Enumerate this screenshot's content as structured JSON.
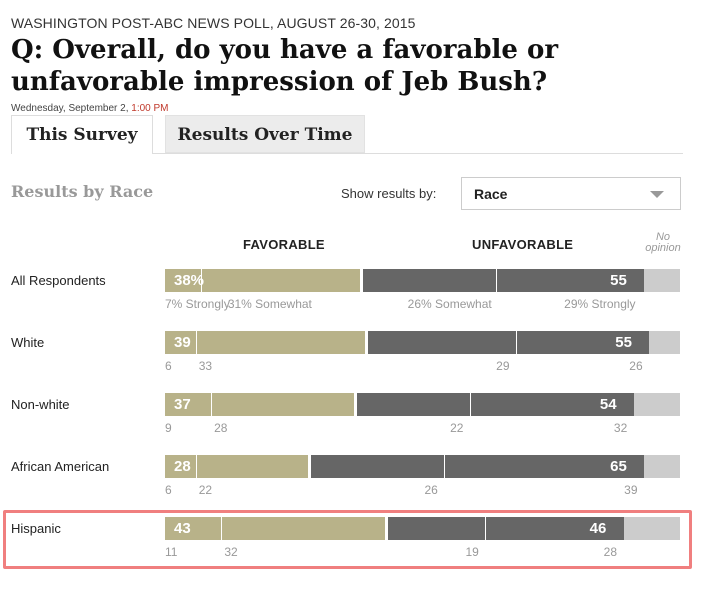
{
  "header": {
    "kicker": "WASHINGTON POST-ABC NEWS POLL, AUGUST 26-30, 2015",
    "question": "Q: Overall, do you have a favorable or unfavorable impression of Jeb Bush?",
    "date": "Wednesday, September 2,",
    "time": "1:00 PM"
  },
  "tabs": [
    {
      "label": "This Survey",
      "active": true
    },
    {
      "label": "Results Over Time",
      "active": false
    }
  ],
  "controls": {
    "section_title": "Results by Race",
    "show_label": "Show results by:",
    "selected": "Race"
  },
  "columns": {
    "favorable": "FAVORABLE",
    "unfavorable": "UNFAVORABLE",
    "no_opinion": "No opinion"
  },
  "colors": {
    "favorable": "#b8b289",
    "unfavorable": "#666666",
    "no_opinion": "#cccccc",
    "highlight": "#f07f7f"
  },
  "chart_data": {
    "type": "bar",
    "orientation": "horizontal-stacked",
    "title": "Results by Race",
    "categories": [
      "All Respondents",
      "White",
      "Non-white",
      "African American",
      "Hispanic"
    ],
    "series": [
      {
        "name": "Favorable",
        "values": [
          38,
          39,
          37,
          28,
          43
        ]
      },
      {
        "name": "Unfavorable",
        "values": [
          55,
          55,
          54,
          65,
          46
        ]
      },
      {
        "name": "No opinion",
        "values": [
          7,
          6,
          9,
          7,
          11
        ]
      }
    ],
    "breakdown": [
      {
        "fav_strong": "7% Strongly",
        "fav_somewhat": "31% Somewhat",
        "unf_somewhat": "26% Somewhat",
        "unf_strong": "29% Strongly"
      },
      {
        "fav_strong": "6",
        "fav_somewhat": "33",
        "unf_somewhat": "29",
        "unf_strong": "26"
      },
      {
        "fav_strong": "9",
        "fav_somewhat": "28",
        "unf_somewhat": "22",
        "unf_strong": "32"
      },
      {
        "fav_strong": "6",
        "fav_somewhat": "22",
        "unf_somewhat": "26",
        "unf_strong": "39"
      },
      {
        "fav_strong": "11",
        "fav_somewhat": "32",
        "unf_somewhat": "19",
        "unf_strong": "28"
      }
    ],
    "fav_strong_values": [
      7,
      6,
      9,
      6,
      11
    ],
    "unf_somewhat_values": [
      26,
      29,
      22,
      26,
      19
    ],
    "highlighted_row": "Hispanic"
  },
  "display": {
    "fav_labels": [
      "38%",
      "39",
      "37",
      "28",
      "43"
    ],
    "unf_labels": [
      "55",
      "55",
      "54",
      "65",
      "46"
    ]
  }
}
